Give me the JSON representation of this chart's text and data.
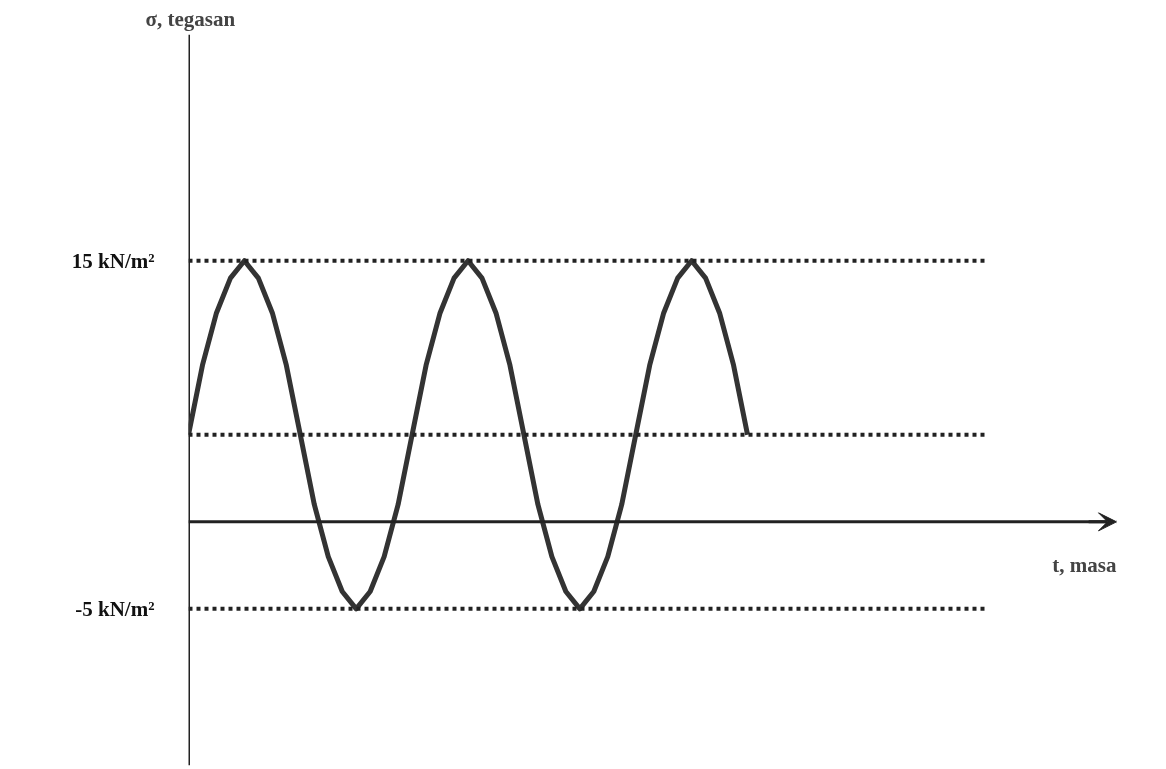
{
  "chart_data": {
    "type": "line",
    "ylabel": "σ, tegasan",
    "annotations": [
      "t, masa"
    ],
    "categories": [
      null,
      null,
      null,
      null,
      null,
      null,
      null,
      null,
      null,
      null,
      null,
      null,
      null,
      null,
      null,
      null,
      null,
      null,
      null,
      null,
      null,
      null,
      null,
      null,
      null,
      null,
      null,
      null,
      null,
      null,
      null,
      null,
      null,
      null,
      null,
      null,
      null,
      null,
      null,
      null,
      null
    ],
    "series": [
      {
        "color": "#333333",
        "values": [
          5,
          9,
          12,
          14,
          15,
          14,
          12,
          9,
          5,
          1,
          -2,
          -4,
          -5,
          -4,
          -2,
          1,
          5,
          9,
          12,
          14,
          15,
          14,
          12,
          9,
          5,
          1,
          -2,
          -4,
          -5,
          -4,
          -2,
          1,
          5,
          9,
          12,
          14,
          15,
          14,
          12,
          9,
          5
        ]
      }
    ],
    "ylim": [
      -14,
      28
    ],
    "yticks": [
      {
        "value": 15,
        "label": "15 kN/m²"
      },
      {
        "value": -5,
        "label": "-5 kN/m²"
      }
    ],
    "tick_labels": "y",
    "grid": false,
    "legend": false,
    "line_style": "solid",
    "ref_lines": [
      {
        "axis": "y",
        "value": 15,
        "line_style": "dotted"
      },
      {
        "axis": "y",
        "value": 5,
        "line_style": "dotted"
      },
      {
        "axis": "y",
        "value": -5,
        "line_style": "dotted"
      }
    ]
  }
}
